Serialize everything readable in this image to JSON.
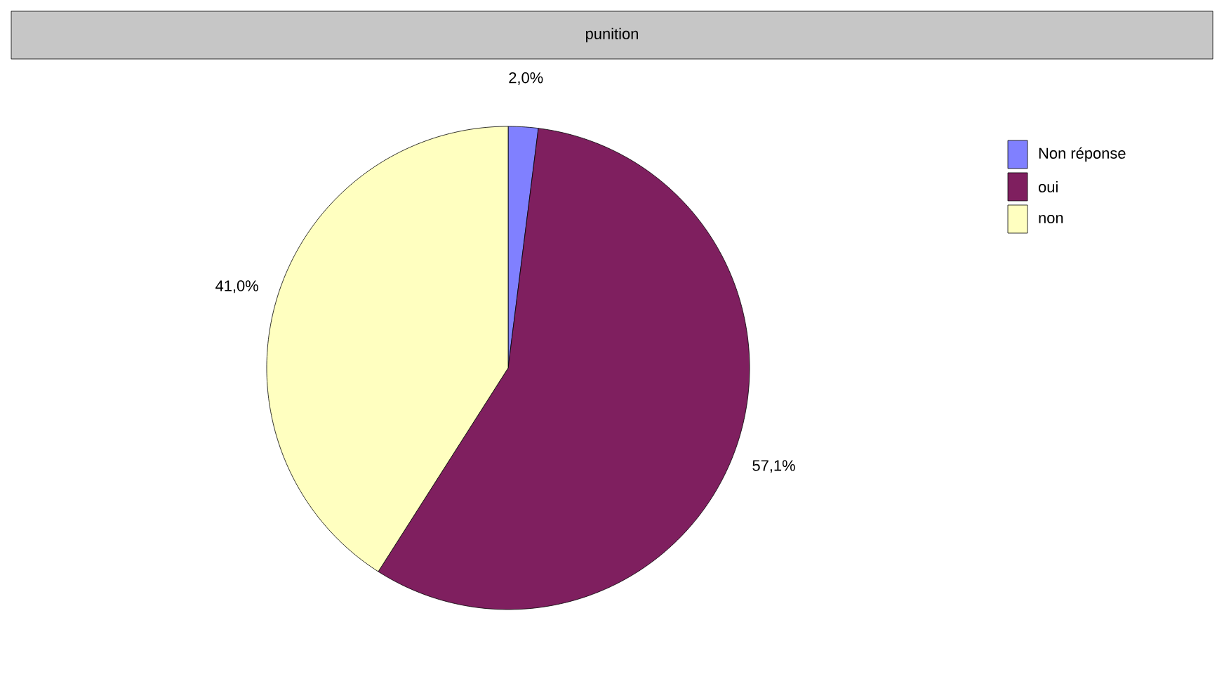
{
  "chart_data": {
    "type": "pie",
    "title": "punition",
    "categories": [
      "Non réponse",
      "oui",
      "non"
    ],
    "values": [
      2.0,
      57.1,
      41.0
    ],
    "colors": [
      "#8080ff",
      "#7f1f5f",
      "#ffffc0"
    ],
    "value_labels": [
      "2,0%",
      "57,1%",
      "41,0%"
    ],
    "legend": "top right"
  }
}
